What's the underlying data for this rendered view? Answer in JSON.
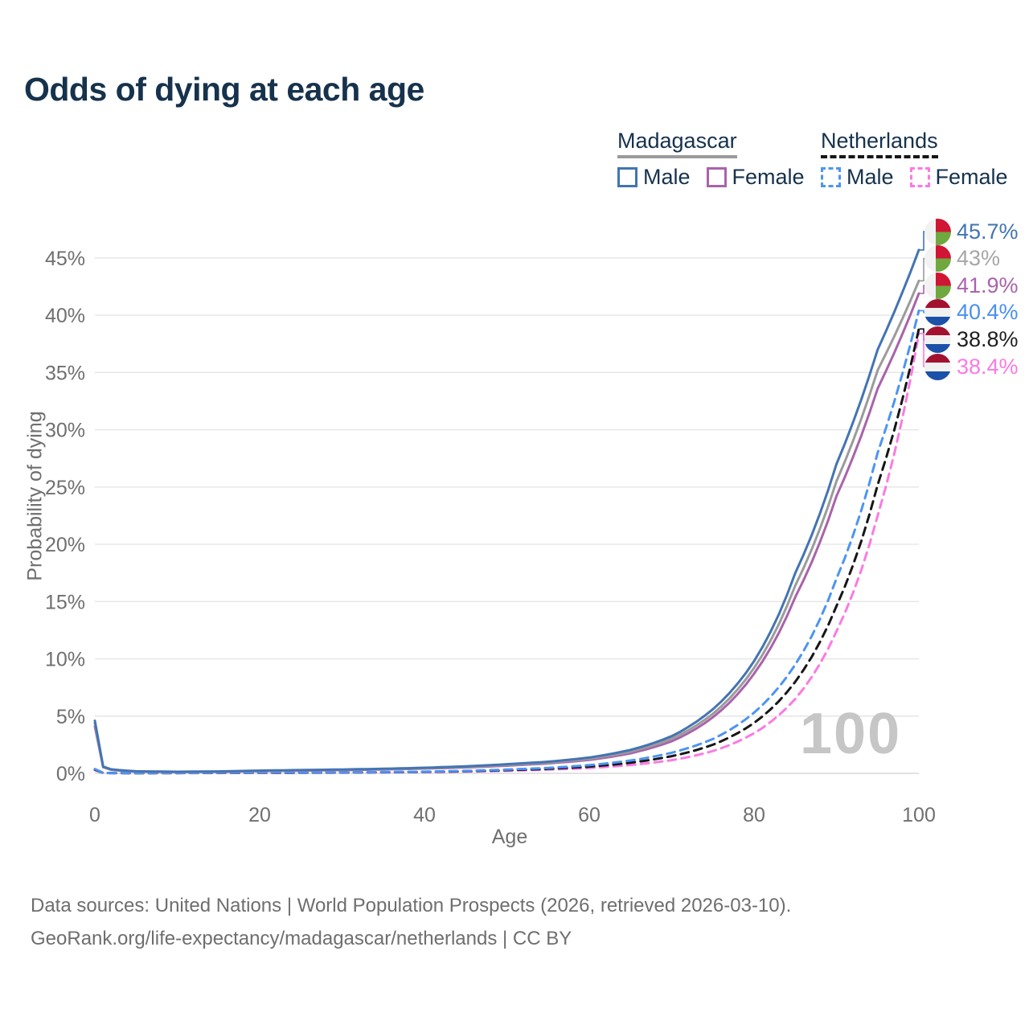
{
  "title": "Odds of dying at each age",
  "legend": {
    "groups": [
      {
        "country": "Madagascar",
        "line_style": "solid",
        "line_color": "#9b9b9b",
        "items": [
          {
            "label": "Male",
            "color": "#4374b3",
            "dashed": false
          },
          {
            "label": "Female",
            "color": "#a963ab",
            "dashed": false
          }
        ]
      },
      {
        "country": "Netherlands",
        "line_style": "dashed",
        "line_color": "#161616",
        "items": [
          {
            "label": "Male",
            "color": "#4d94f2",
            "dashed": true
          },
          {
            "label": "Female",
            "color": "#fb7ae3",
            "dashed": true
          }
        ]
      }
    ]
  },
  "chart_data": {
    "type": "line",
    "title": "Odds of dying at each age",
    "xlabel": "Age",
    "ylabel": "Probability of dying",
    "xlim": [
      0,
      100
    ],
    "ylim": [
      0,
      47
    ],
    "x_ticks": [
      0,
      20,
      40,
      60,
      80,
      100
    ],
    "y_ticks": [
      "0%",
      "5%",
      "10%",
      "15%",
      "20%",
      "25%",
      "30%",
      "35%",
      "40%",
      "45%"
    ],
    "grid": "horizontal-only",
    "gridline_color": "#e5e5e5",
    "hover_age": "100",
    "ages": [
      0,
      1,
      2,
      5,
      10,
      15,
      20,
      25,
      30,
      35,
      40,
      45,
      50,
      55,
      60,
      65,
      70,
      75,
      80,
      85,
      90,
      95,
      100
    ],
    "series": [
      {
        "name": "Madagascar Male",
        "country": "Madagascar",
        "sex": "Male",
        "flag": "madagascar",
        "color": "#4374b3",
        "dashed": false,
        "end_label": "45.7%",
        "end_label_color": "#4374b3",
        "values": [
          4.6,
          0.6,
          0.35,
          0.18,
          0.14,
          0.17,
          0.24,
          0.29,
          0.34,
          0.4,
          0.49,
          0.62,
          0.8,
          1.02,
          1.38,
          2.05,
          3.25,
          5.6,
          9.8,
          17.5,
          27.0,
          37.0,
          45.7
        ]
      },
      {
        "name": "Madagascar Both sexes",
        "country": "Madagascar",
        "sex": "All",
        "flag": "madagascar",
        "color": "#9b9b9b",
        "dashed": false,
        "end_label": "43%",
        "end_label_color": "#a6a6a6",
        "values": [
          4.4,
          0.57,
          0.33,
          0.17,
          0.13,
          0.16,
          0.22,
          0.27,
          0.31,
          0.37,
          0.45,
          0.57,
          0.73,
          0.94,
          1.27,
          1.9,
          3.02,
          5.2,
          9.2,
          16.4,
          25.5,
          35.2,
          43.0
        ]
      },
      {
        "name": "Madagascar Female",
        "country": "Madagascar",
        "sex": "Female",
        "flag": "madagascar",
        "color": "#a963ab",
        "dashed": false,
        "end_label": "41.9%",
        "end_label_color": "#a963ab",
        "values": [
          4.1,
          0.54,
          0.31,
          0.16,
          0.12,
          0.14,
          0.2,
          0.24,
          0.28,
          0.34,
          0.42,
          0.52,
          0.67,
          0.87,
          1.17,
          1.75,
          2.8,
          4.9,
          8.7,
          15.4,
          24.2,
          33.6,
          41.9
        ]
      },
      {
        "name": "Netherlands Male",
        "country": "Netherlands",
        "sex": "Male",
        "flag": "netherlands",
        "color": "#4d94f2",
        "dashed": true,
        "end_label": "40.4%",
        "end_label_color": "#4a90f0",
        "values": [
          0.38,
          0.05,
          0.03,
          0.02,
          0.03,
          0.05,
          0.07,
          0.08,
          0.09,
          0.11,
          0.15,
          0.22,
          0.33,
          0.48,
          0.72,
          1.12,
          1.8,
          3.0,
          5.3,
          9.5,
          17.0,
          28.0,
          40.4
        ]
      },
      {
        "name": "Netherlands Both sexes",
        "country": "Netherlands",
        "sex": "All",
        "flag": "netherlands",
        "color": "#161616",
        "dashed": true,
        "end_label": "38.8%",
        "end_label_color": "#1f1f1f",
        "values": [
          0.33,
          0.04,
          0.03,
          0.02,
          0.03,
          0.04,
          0.05,
          0.06,
          0.08,
          0.1,
          0.13,
          0.19,
          0.28,
          0.4,
          0.59,
          0.93,
          1.5,
          2.5,
          4.4,
          8.0,
          14.6,
          25.2,
          38.8
        ]
      },
      {
        "name": "Netherlands Female",
        "country": "Netherlands",
        "sex": "Female",
        "flag": "netherlands",
        "color": "#fb7ae3",
        "dashed": true,
        "end_label": "38.4%",
        "end_label_color": "#fb7ae3",
        "values": [
          0.28,
          0.04,
          0.02,
          0.02,
          0.02,
          0.03,
          0.04,
          0.05,
          0.06,
          0.08,
          0.11,
          0.16,
          0.23,
          0.33,
          0.47,
          0.73,
          1.15,
          1.95,
          3.5,
          6.5,
          12.4,
          22.5,
          38.4
        ]
      }
    ],
    "flag_colors": {
      "madagascar": {
        "white": "#f2f2f2",
        "red": "#d01535",
        "green": "#6fa83f"
      },
      "netherlands": {
        "red": "#a31130",
        "white": "#f1f1f1",
        "blue": "#1b51a8"
      }
    }
  },
  "footer": {
    "line1": "Data sources: United Nations | World Population Prospects (2026, retrieved 2026-03-10).",
    "line2": "GeoRank.org/life-expectancy/madagascar/netherlands | CC BY"
  }
}
